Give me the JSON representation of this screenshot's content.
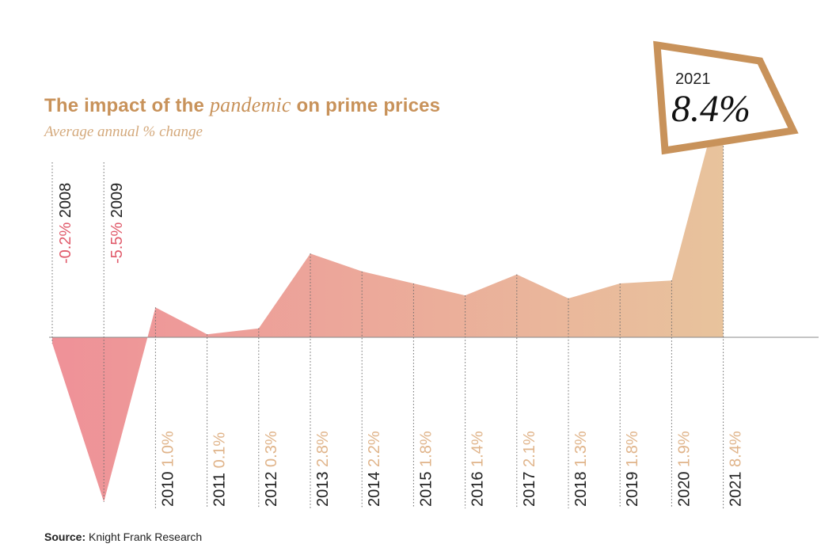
{
  "title": {
    "prefix": "The impact of the ",
    "emphasis": "pandemic",
    "suffix": " on prime prices"
  },
  "subtitle": "Average annual % change",
  "source": {
    "label": "Source:",
    "text": "Knight Frank Research"
  },
  "callout": {
    "year": "2021",
    "value": "8.4%"
  },
  "colors": {
    "title": "#c8925a",
    "subtitle": "#d4a97c",
    "negative_label": "#e05a6a",
    "positive_label": "#e0b48a",
    "area_left": "#ef9198",
    "area_right": "#e8c39c",
    "callout_border": "#c8925a",
    "axis": "#888888"
  },
  "chart_data": {
    "type": "area",
    "title": "The impact of the pandemic on prime prices",
    "subtitle": "Average annual % change",
    "xlabel": "",
    "ylabel": "",
    "categories": [
      "2008",
      "2009",
      "2010",
      "2011",
      "2012",
      "2013",
      "2014",
      "2015",
      "2016",
      "2017",
      "2018",
      "2019",
      "2020",
      "2021"
    ],
    "values": [
      -0.2,
      -5.5,
      1.0,
      0.1,
      0.3,
      2.8,
      2.2,
      1.8,
      1.4,
      2.1,
      1.3,
      1.8,
      1.9,
      8.4
    ],
    "value_labels": [
      "-0.2%",
      "-5.5%",
      "1.0%",
      "0.1%",
      "0.3%",
      "2.8%",
      "2.2%",
      "1.8%",
      "1.4%",
      "2.1%",
      "1.3%",
      "1.8%",
      "1.9%",
      "8.4%"
    ],
    "grid": false,
    "legend": "none"
  }
}
